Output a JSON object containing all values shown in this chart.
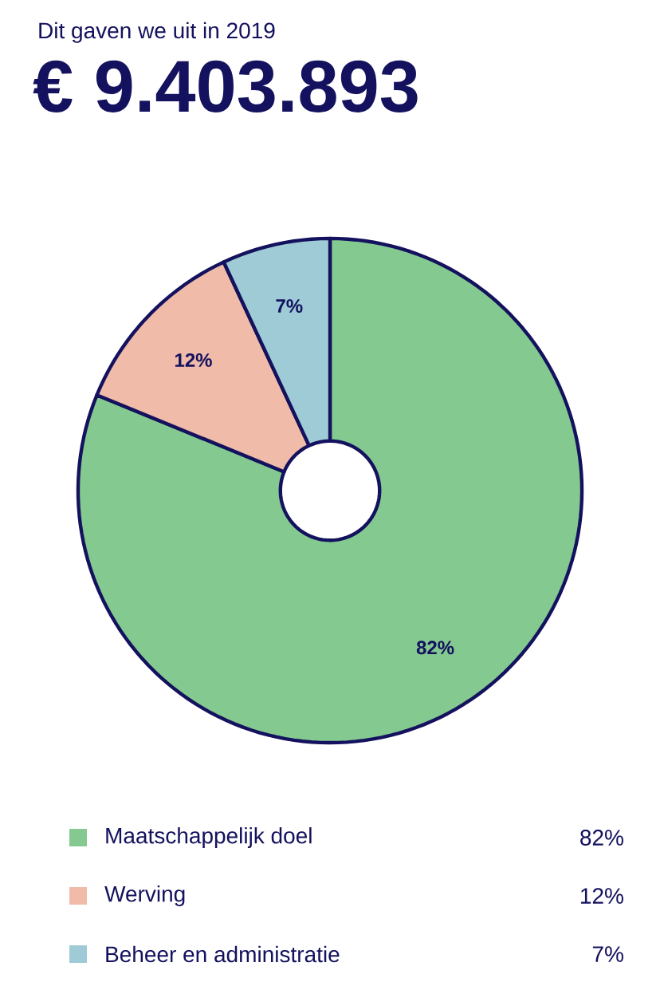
{
  "chart_data": {
    "type": "donut",
    "title": "Dit gaven we uit in 2019",
    "subtitle": "€ 9.403.893",
    "categories": [
      "Maatschappelijk doel",
      "Werving",
      "Beheer en administratie"
    ],
    "values": [
      82,
      12,
      7
    ],
    "value_labels": [
      "82%",
      "12%",
      "7%"
    ],
    "colors": [
      "#84c990",
      "#f0bba8",
      "#9ecbd6"
    ],
    "legend": "bottom"
  }
}
